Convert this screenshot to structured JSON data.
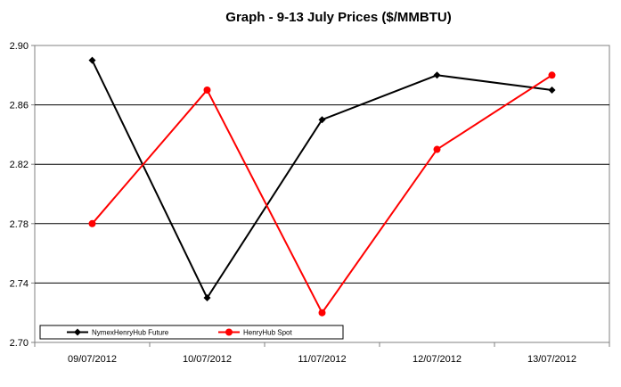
{
  "chart_data": {
    "type": "line",
    "title": "Graph - 9-13 July Prices ($/MMBTU)",
    "xlabel": "",
    "ylabel": "",
    "categories": [
      "09/07/2012",
      "10/07/2012",
      "11/07/2012",
      "12/07/2012",
      "13/07/2012"
    ],
    "ylim": [
      2.7,
      2.9
    ],
    "yticks": [
      "2.70",
      "2.74",
      "2.78",
      "2.82",
      "2.86",
      "2.90"
    ],
    "grid": "horizontal",
    "legend_position": "bottom-left",
    "series": [
      {
        "name": "NymexHenryHub Future",
        "color": "#000000",
        "marker": "diamond",
        "values": [
          2.89,
          2.73,
          2.85,
          2.88,
          2.87
        ]
      },
      {
        "name": "HenryHub Spot",
        "color": "#ff0000",
        "marker": "circle",
        "values": [
          2.78,
          2.87,
          2.72,
          2.83,
          2.88
        ]
      }
    ]
  }
}
